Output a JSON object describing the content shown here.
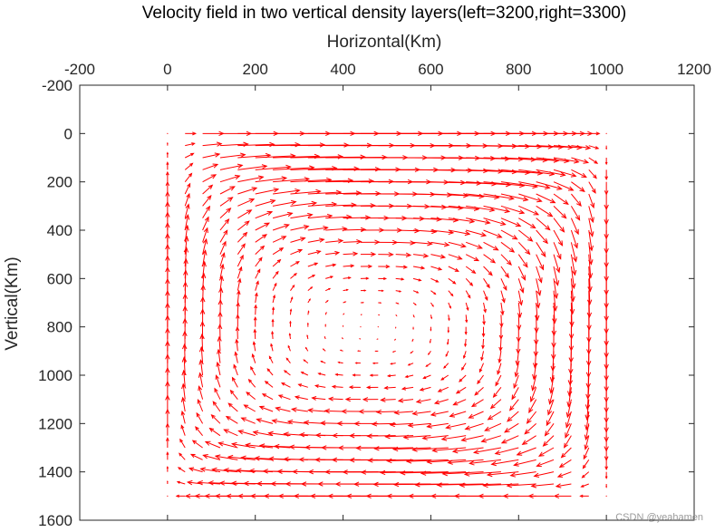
{
  "chart_data": {
    "type": "quiver",
    "title": "Velocity field in two vertical density layers(left=3200,right=3300)",
    "xlabel": "Horizontal(Km)",
    "ylabel": "Vertical(Km)",
    "x_axis_location": "top",
    "y_axis_direction": "reversed",
    "xlim": [
      -200,
      1200
    ],
    "ylim": [
      -200,
      1600
    ],
    "xticks": [
      -200,
      0,
      200,
      400,
      600,
      800,
      1000,
      1200
    ],
    "yticks": [
      -200,
      0,
      200,
      400,
      600,
      800,
      1000,
      1200,
      1400,
      1600
    ],
    "xtick_labels": [
      "-200",
      "0",
      "200",
      "400",
      "600",
      "800",
      "1000",
      "1200"
    ],
    "ytick_labels": [
      "-200",
      "0",
      "200",
      "400",
      "600",
      "800",
      "1000",
      "1200",
      "1400",
      "1600"
    ],
    "grid": {
      "x_start": 0,
      "x_end": 1000,
      "x_step": 40,
      "y_start": 0,
      "y_end": 1500,
      "y_step": 50
    },
    "field": {
      "description": "single clockwise circulation cell with stagnation point near the centre",
      "center": [
        460,
        800
      ],
      "circulation": "clockwise",
      "max_vector_length_km": 190
    },
    "series": [
      {
        "color": "#ff0000"
      }
    ],
    "grid_lines": false
  },
  "watermark": "CSDN @yeahamen"
}
